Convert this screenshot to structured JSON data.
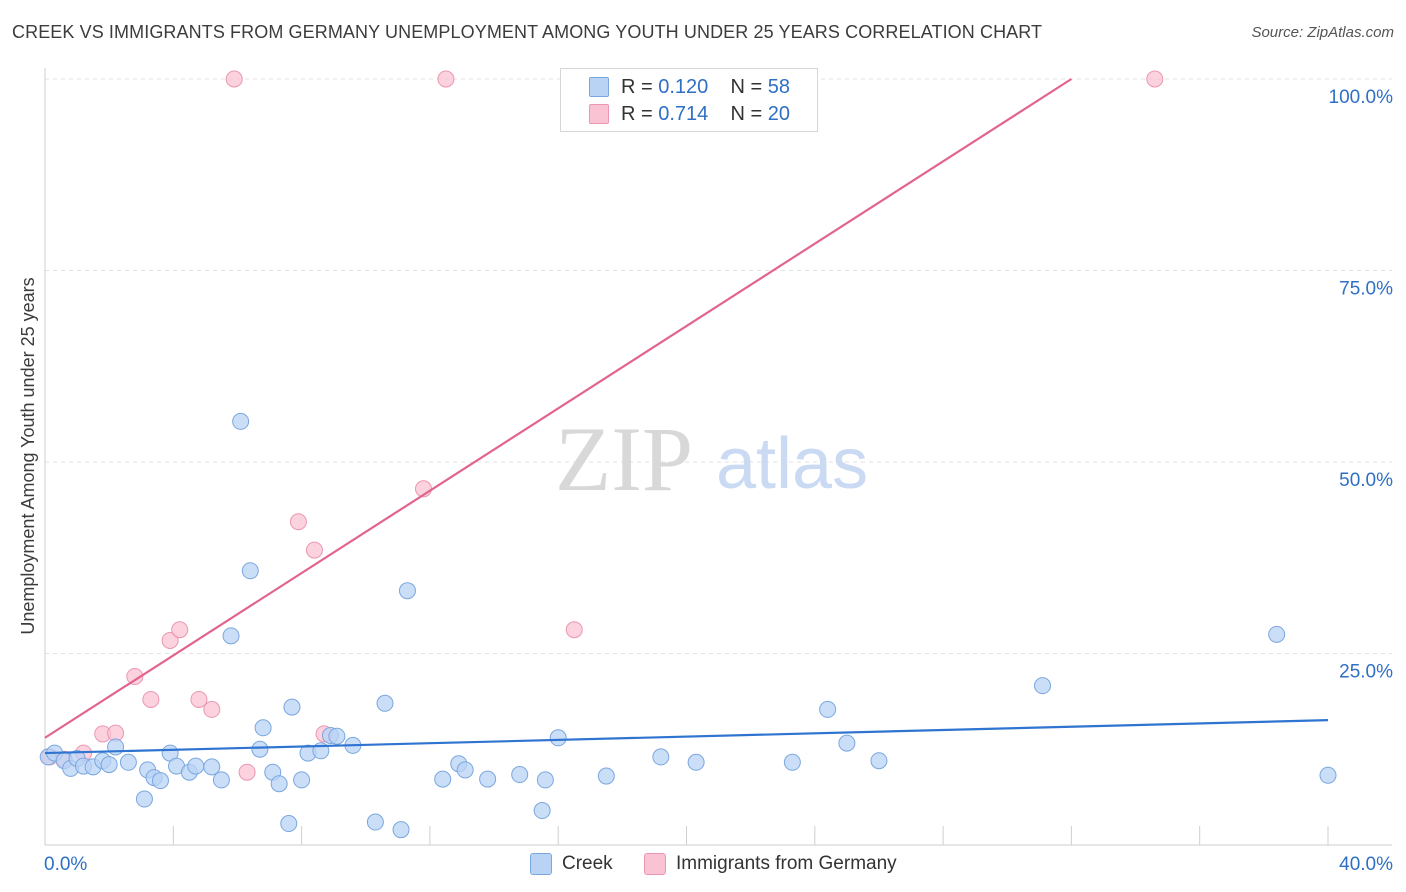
{
  "title": "CREEK VS IMMIGRANTS FROM GERMANY UNEMPLOYMENT AMONG YOUTH UNDER 25 YEARS CORRELATION CHART",
  "source": "Source: ZipAtlas.com",
  "watermark": {
    "zip": "ZIP",
    "atlas": "atlas"
  },
  "legend": {
    "r_label": "R = ",
    "n_label": "N = ",
    "series": [
      {
        "name": "Creek",
        "r": "0.120",
        "n": "58"
      },
      {
        "name": "Immigrants from Germany",
        "r": "0.714",
        "n": "20"
      }
    ]
  },
  "colors": {
    "creek_fill": "#b9d3f5",
    "creek_stroke": "#7aa7df",
    "creek_line": "#2f74d0",
    "germany_fill": "#f9c3d3",
    "germany_stroke": "#eb97b0",
    "germany_line": "#e2648e",
    "axis_label": "#2f6fc4",
    "grid": "#e2e2e2"
  },
  "chart_data": {
    "type": "scatter",
    "title": "CREEK VS IMMIGRANTS FROM GERMANY UNEMPLOYMENT AMONG YOUTH UNDER 25 YEARS CORRELATION CHART",
    "xlabel": "",
    "ylabel": "Unemployment Among Youth under 25 years",
    "xlim": [
      0,
      40
    ],
    "ylim": [
      0,
      100
    ],
    "x_tick_labels": [
      "0.0%",
      "40.0%"
    ],
    "y_tick_values": [
      25,
      50,
      75,
      100
    ],
    "y_tick_labels": [
      "25.0%",
      "50.0%",
      "75.0%",
      "100.0%"
    ],
    "series": [
      {
        "name": "Creek",
        "trendline": {
          "x": [
            0,
            40
          ],
          "y": [
            12.0,
            16.3
          ]
        },
        "points": [
          [
            0.1,
            11.5
          ],
          [
            0.3,
            12.0
          ],
          [
            0.6,
            11.0
          ],
          [
            0.8,
            10.0
          ],
          [
            1.0,
            11.3
          ],
          [
            1.2,
            10.3
          ],
          [
            1.5,
            10.2
          ],
          [
            1.8,
            11.0
          ],
          [
            2.0,
            10.5
          ],
          [
            2.6,
            10.8
          ],
          [
            2.2,
            12.8
          ],
          [
            3.2,
            9.8
          ],
          [
            3.4,
            8.8
          ],
          [
            3.6,
            8.4
          ],
          [
            3.9,
            12.0
          ],
          [
            4.1,
            10.3
          ],
          [
            4.5,
            9.5
          ],
          [
            4.7,
            10.3
          ],
          [
            5.2,
            10.2
          ],
          [
            5.5,
            8.5
          ],
          [
            3.1,
            6.0
          ],
          [
            5.8,
            27.3
          ],
          [
            6.1,
            55.3
          ],
          [
            6.4,
            35.8
          ],
          [
            6.7,
            12.5
          ],
          [
            6.8,
            15.3
          ],
          [
            7.1,
            9.5
          ],
          [
            7.3,
            8.0
          ],
          [
            7.6,
            2.8
          ],
          [
            7.7,
            18.0
          ],
          [
            8.0,
            8.5
          ],
          [
            8.2,
            12.0
          ],
          [
            8.6,
            12.3
          ],
          [
            8.9,
            14.3
          ],
          [
            9.1,
            14.2
          ],
          [
            9.6,
            13.0
          ],
          [
            10.3,
            3.0
          ],
          [
            10.6,
            18.5
          ],
          [
            11.1,
            2.0
          ],
          [
            11.3,
            33.2
          ],
          [
            12.4,
            8.6
          ],
          [
            12.9,
            10.6
          ],
          [
            13.1,
            9.8
          ],
          [
            13.8,
            8.6
          ],
          [
            14.8,
            9.2
          ],
          [
            15.5,
            4.5
          ],
          [
            15.6,
            8.5
          ],
          [
            16.0,
            14.0
          ],
          [
            20.3,
            10.8
          ],
          [
            23.3,
            10.8
          ],
          [
            24.4,
            17.7
          ],
          [
            25.0,
            13.3
          ],
          [
            31.1,
            20.8
          ],
          [
            38.4,
            27.5
          ],
          [
            40.0,
            9.1
          ],
          [
            19.2,
            11.5
          ],
          [
            26.0,
            11.0
          ],
          [
            17.5,
            9.0
          ]
        ]
      },
      {
        "name": "Immigrants from Germany",
        "trendline": {
          "x": [
            0,
            32
          ],
          "y": [
            14.0,
            100
          ]
        },
        "points": [
          [
            0.15,
            11.5
          ],
          [
            0.6,
            11.2
          ],
          [
            1.2,
            12.0
          ],
          [
            1.8,
            14.5
          ],
          [
            2.2,
            14.6
          ],
          [
            2.8,
            22.0
          ],
          [
            3.3,
            19.0
          ],
          [
            3.9,
            26.7
          ],
          [
            4.2,
            28.1
          ],
          [
            4.8,
            19.0
          ],
          [
            5.2,
            17.7
          ],
          [
            5.9,
            100.0
          ],
          [
            6.3,
            9.5
          ],
          [
            7.9,
            42.2
          ],
          [
            8.4,
            38.5
          ],
          [
            8.7,
            14.5
          ],
          [
            11.8,
            46.5
          ],
          [
            12.5,
            100.0
          ],
          [
            16.5,
            28.1
          ],
          [
            34.6,
            100.0
          ]
        ]
      }
    ]
  }
}
